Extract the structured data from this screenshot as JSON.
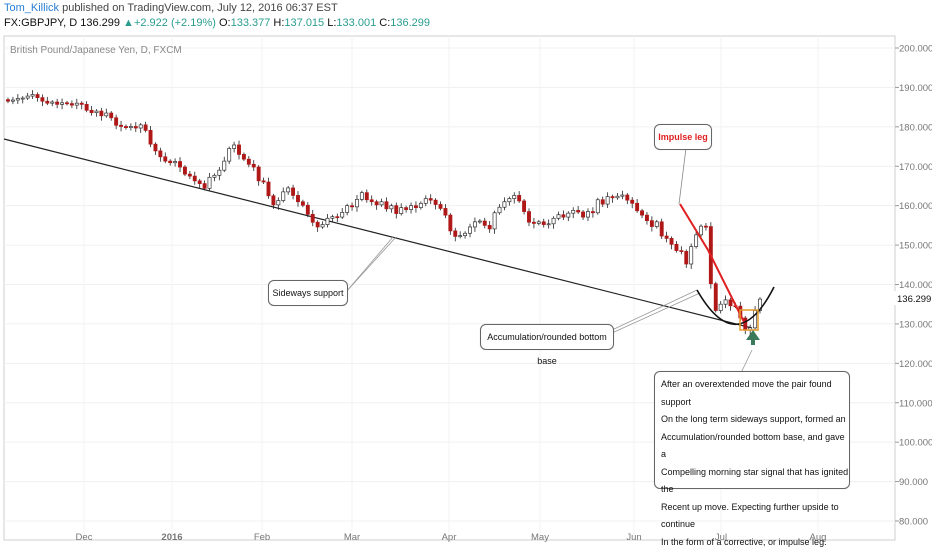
{
  "header": {
    "author": "Tom_Killick",
    "published": "published on TradingView.com, July 12, 2016 06:37 EST",
    "symbol": "FX:GBPJPY, D",
    "last": "136.299",
    "change": "+2.922 (+2.19%)",
    "o_label": "O:",
    "o_val": "133.377",
    "h_label": "H:",
    "h_val": "137.015",
    "l_label": "L:",
    "l_val": "133.001",
    "c_label": "C:",
    "c_val": "136.299",
    "up_arrow": "▲"
  },
  "chart_title": "British Pound/Japanese Yen, D, FXCM",
  "current_price_label": "136.299",
  "colors": {
    "up": "#ffffff",
    "down": "#b01818",
    "grid": "#f0f0f0",
    "support_line": "#222222",
    "impulse": "#e02020",
    "accent_box": "#e69a2a",
    "arrow": "#3a7a5a"
  },
  "chart_data": {
    "type": "candlestick",
    "title": "British Pound/Japanese Yen, D, FXCM",
    "xlabel": "",
    "ylabel": "",
    "ylim": [
      80,
      200
    ],
    "y_ticks": [
      "200.000",
      "190.000",
      "180.000",
      "170.000",
      "160.000",
      "150.000",
      "140.000",
      "130.000",
      "120.000",
      "110.000",
      "100.000",
      "90.000",
      "80.000"
    ],
    "x_ticks": [
      "Dec",
      "2016",
      "Feb",
      "Mar",
      "Apr",
      "May",
      "Jun",
      "Jul",
      "Aug"
    ],
    "closes": [
      186.5,
      186.8,
      187.2,
      187.3,
      187.8,
      188.2,
      187.4,
      186.5,
      186.0,
      186.3,
      185.7,
      186.1,
      185.9,
      185.5,
      186.0,
      185.7,
      184.2,
      183.6,
      184.0,
      182.8,
      183.5,
      182.3,
      180.4,
      180.1,
      179.8,
      180.1,
      179.7,
      180.5,
      179.1,
      175.6,
      173.9,
      172.4,
      171.3,
      170.9,
      171.2,
      169.8,
      168.0,
      167.5,
      166.3,
      165.6,
      164.4,
      167.2,
      167.7,
      169.0,
      171.3,
      174.5,
      175.4,
      173.0,
      171.8,
      170.5,
      169.8,
      166.3,
      166.0,
      162.5,
      160.2,
      161.3,
      163.5,
      164.5,
      162.6,
      161.0,
      160.1,
      157.8,
      155.8,
      154.6,
      155.2,
      156.8,
      157.2,
      157.1,
      158.3,
      160.0,
      159.7,
      161.6,
      163.3,
      161.5,
      161.0,
      160.2,
      161.0,
      159.2,
      160.0,
      158.0,
      159.5,
      159.0,
      160.0,
      159.5,
      160.6,
      161.8,
      161.4,
      160.3,
      159.3,
      157.6,
      153.6,
      152.2,
      152.4,
      153.0,
      154.6,
      155.9,
      156.1,
      155.0,
      154.1,
      158.2,
      159.6,
      161.0,
      161.8,
      162.6,
      161.2,
      158.5,
      155.8,
      155.5,
      155.9,
      155.2,
      155.4,
      156.8,
      157.7,
      157.1,
      158.1,
      158.8,
      158.4,
      157.1,
      158.5,
      158.2,
      161.5,
      160.4,
      162.3,
      162.0,
      162.4,
      162.7,
      161.4,
      160.6,
      158.7,
      157.6,
      156.2,
      154.7,
      155.9,
      152.3,
      151.7,
      150.2,
      148.6,
      148.4,
      145.2,
      149.6,
      152.6,
      154.8,
      154.7,
      140.2,
      133.4,
      135.0,
      136.1,
      134.6,
      134.5,
      131.5,
      128.4,
      129.0,
      133.4,
      136.3
    ],
    "annotations": {
      "impulse_label": "Impulse leg",
      "sideways_label": "Sideways support",
      "accumulation_label": "Accumulation/rounded bottom base",
      "comment_lines": [
        "After an overextended move the pair found support",
        "On the long term sideways support, formed an",
        "Accumulation/rounded bottom base, and gave a",
        "Compelling morning star signal that has ignited the",
        "Recent up move. Expecting further upside to continue",
        "In the form of a corrective, or impulse leg."
      ]
    }
  }
}
